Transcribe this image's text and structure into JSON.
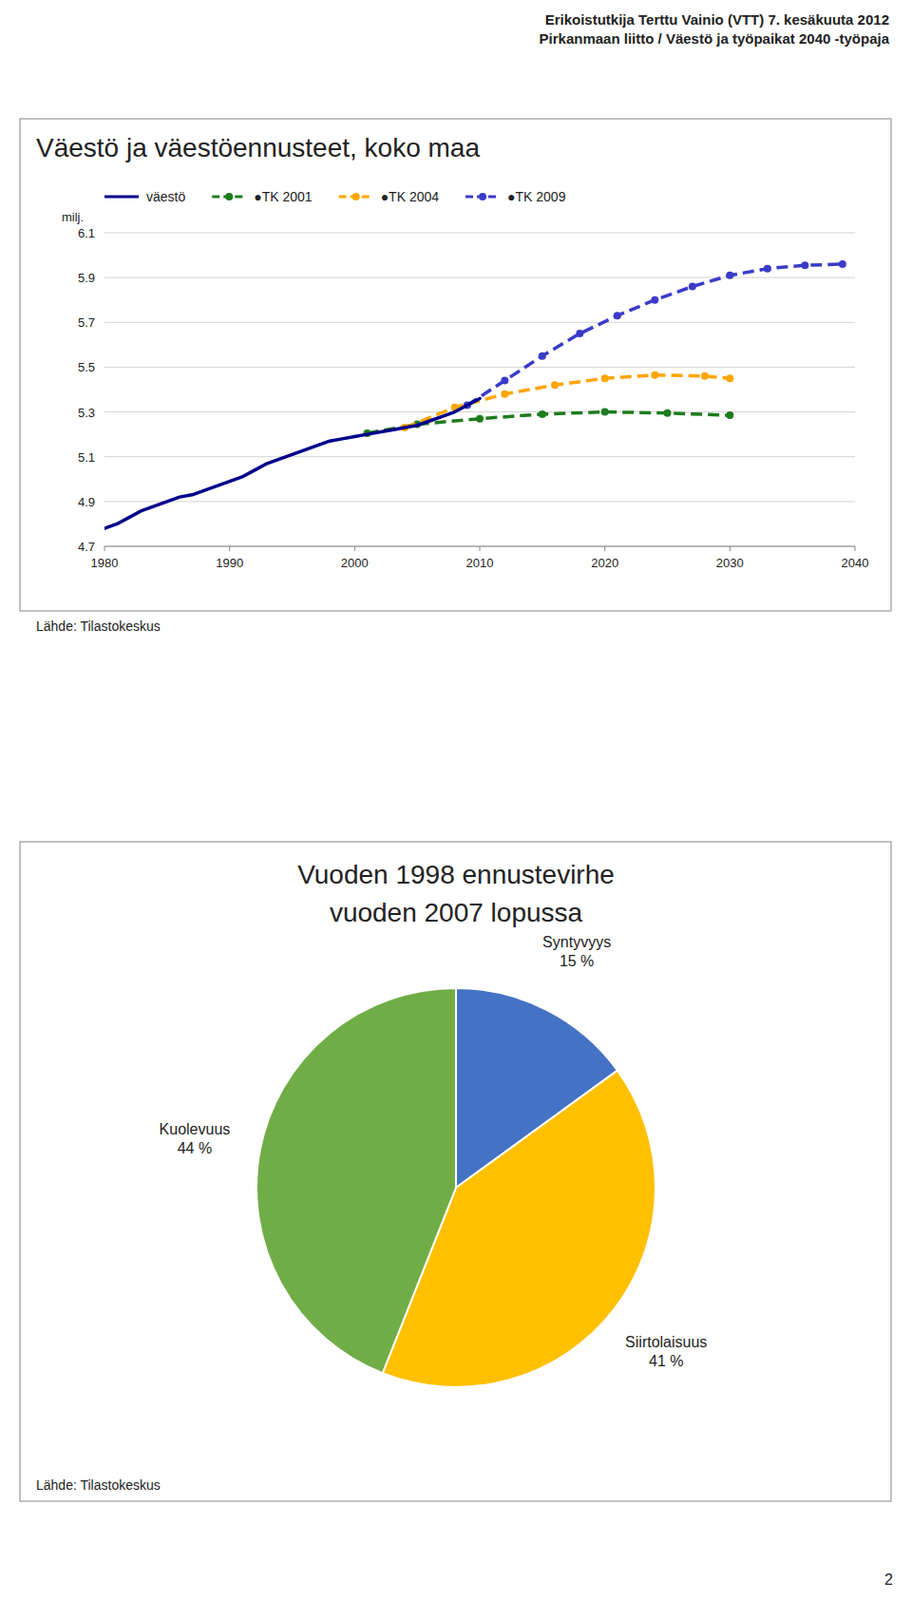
{
  "header": [
    "Erikoistutkija Terttu Vainio (VTT) 7. kesäkuuta 2012",
    "Pirkanmaan liitto / Väestö ja työpaikat 2040 -työpaja"
  ],
  "page_number": "2",
  "chart_data": [
    {
      "type": "line",
      "title": "Väestö ja väestöennusteet, koko maa",
      "y_label": "milj.",
      "source": "Lähde: Tilastokeskus",
      "xlim": [
        1980,
        2040
      ],
      "xticks": [
        1980,
        1990,
        2000,
        2010,
        2020,
        2030,
        2040
      ],
      "ylim": [
        4.7,
        6.1
      ],
      "yticks": [
        4.7,
        4.9,
        5.1,
        5.3,
        5.5,
        5.7,
        5.9,
        6.1
      ],
      "grid": "y",
      "legend": "top",
      "series": [
        {
          "name": "väestö",
          "color": "#00008B",
          "line_style": "solid",
          "x": [
            1980,
            1981,
            1982,
            1983,
            1984,
            1985,
            1986,
            1987,
            1988,
            1989,
            1990,
            1991,
            1992,
            1993,
            1994,
            1995,
            1996,
            1997,
            1998,
            1999,
            2000,
            2001,
            2002,
            2003,
            2004,
            2005,
            2006,
            2007,
            2008,
            2009,
            2010
          ],
          "values": [
            4.78,
            4.8,
            4.83,
            4.86,
            4.88,
            4.9,
            4.92,
            4.93,
            4.95,
            4.97,
            4.99,
            5.01,
            5.04,
            5.07,
            5.09,
            5.11,
            5.13,
            5.15,
            5.17,
            5.18,
            5.19,
            5.2,
            5.21,
            5.22,
            5.23,
            5.24,
            5.26,
            5.28,
            5.3,
            5.33,
            5.36
          ]
        },
        {
          "name": "●TK 2001",
          "color": "#1E7B1E",
          "line_style": "dashed",
          "marker": "circle",
          "x": [
            2001,
            2005,
            2010,
            2015,
            2020,
            2025,
            2030
          ],
          "values": [
            5.205,
            5.245,
            5.27,
            5.29,
            5.3,
            5.295,
            5.285
          ]
        },
        {
          "name": "●TK 2004",
          "color": "#FFA500",
          "line_style": "dashed",
          "marker": "circle",
          "x": [
            2004,
            2008,
            2012,
            2016,
            2020,
            2024,
            2028,
            2030
          ],
          "values": [
            5.23,
            5.32,
            5.38,
            5.42,
            5.45,
            5.465,
            5.46,
            5.45
          ]
        },
        {
          "name": "●TK 2009",
          "color": "#3B3BC8",
          "line_style": "dashed",
          "marker": "circle",
          "x": [
            2009,
            2012,
            2015,
            2018,
            2021,
            2024,
            2027,
            2030,
            2033,
            2036,
            2039
          ],
          "values": [
            5.33,
            5.44,
            5.55,
            5.65,
            5.73,
            5.8,
            5.86,
            5.91,
            5.94,
            5.955,
            5.96
          ]
        }
      ]
    },
    {
      "type": "pie",
      "title": "Vuoden 1998 ennustevirhe",
      "subtitle": "vuoden 2007 lopussa",
      "source": "Lähde: Tilastokeskus",
      "categories": [
        "Syntyvyys",
        "Siirtolaisuus",
        "Kuolevuus"
      ],
      "values": [
        15,
        41,
        44
      ],
      "value_labels": [
        "15 %",
        "41 %",
        "44 %"
      ],
      "colors": [
        "#4472C4",
        "#FFC000",
        "#70AD47"
      ],
      "data_labels": true
    }
  ]
}
